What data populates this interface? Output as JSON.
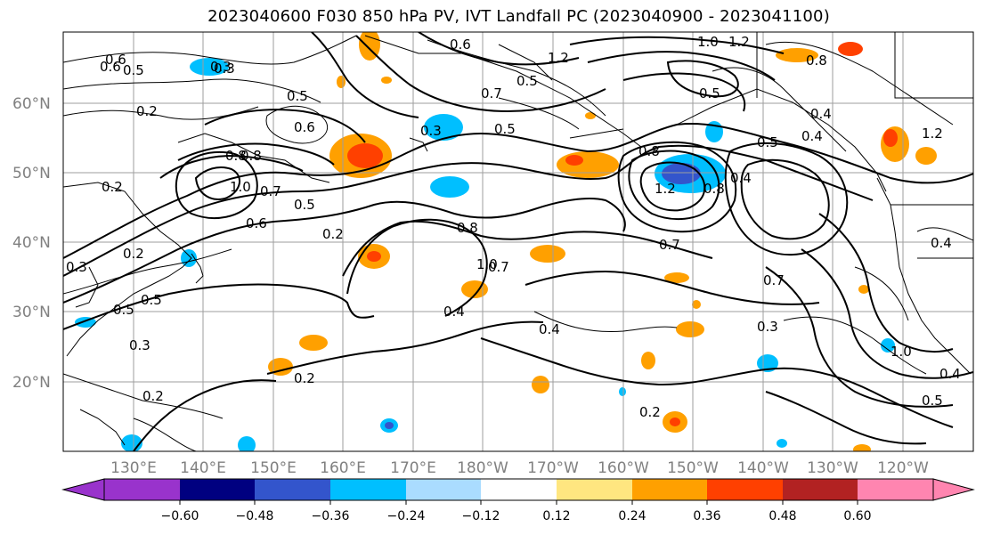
{
  "title": "2023040600 F030 850 hPa PV, IVT Landfall PC (2023040900 - 2023041100)",
  "map": {
    "lat_labels": [
      "60°N",
      "50°N",
      "40°N",
      "30°N",
      "20°N"
    ],
    "lon_labels": [
      "130°E",
      "140°E",
      "150°E",
      "160°E",
      "170°E",
      "180°W",
      "170°W",
      "160°W",
      "150°W",
      "140°W",
      "130°W",
      "120°W"
    ],
    "contour_labels": [
      "0.6",
      "0.5",
      "0.2",
      "0.5",
      "0.6",
      "0.8",
      "1.0",
      "0.7",
      "0.6",
      "0.5",
      "0.2",
      "0.3",
      "0.5",
      "0.2",
      "0.3",
      "0.5",
      "0.3",
      "0.2",
      "0.2",
      "0.3",
      "0.8",
      "0.7",
      "0.5",
      "0.6",
      "1.0",
      "0.8",
      "0.8",
      "1.2",
      "1.0",
      "1.2",
      "0.5",
      "0.4",
      "0.8",
      "1.2",
      "0.5",
      "0.4",
      "0.7",
      "0.7",
      "0.3",
      "0.4",
      "0.4",
      "0.2",
      "0.2",
      "1.0",
      "0.5",
      "0.4",
      "0.4",
      "0.7",
      "0.5",
      "0.4",
      "1.2",
      "0.8",
      "0.3",
      "0.6"
    ],
    "colors": {
      "pos_light": "#ffe680",
      "pos_mid": "#ffa000",
      "pos_strong": "#ff4000",
      "neg_light": "#aadcff",
      "neg_mid": "#00bfff",
      "neg_strong": "#3355cc"
    }
  },
  "colorbar": {
    "ticks": [
      "−0.60",
      "−0.48",
      "−0.36",
      "−0.24",
      "−0.12",
      "0.12",
      "0.24",
      "0.36",
      "0.48",
      "0.60"
    ],
    "colors": [
      "#9933cc",
      "#000080",
      "#3355cc",
      "#00bfff",
      "#aadcff",
      "#ffffff",
      "#ffe680",
      "#ffa000",
      "#ff4000",
      "#b22222",
      "#ff85b0"
    ]
  }
}
